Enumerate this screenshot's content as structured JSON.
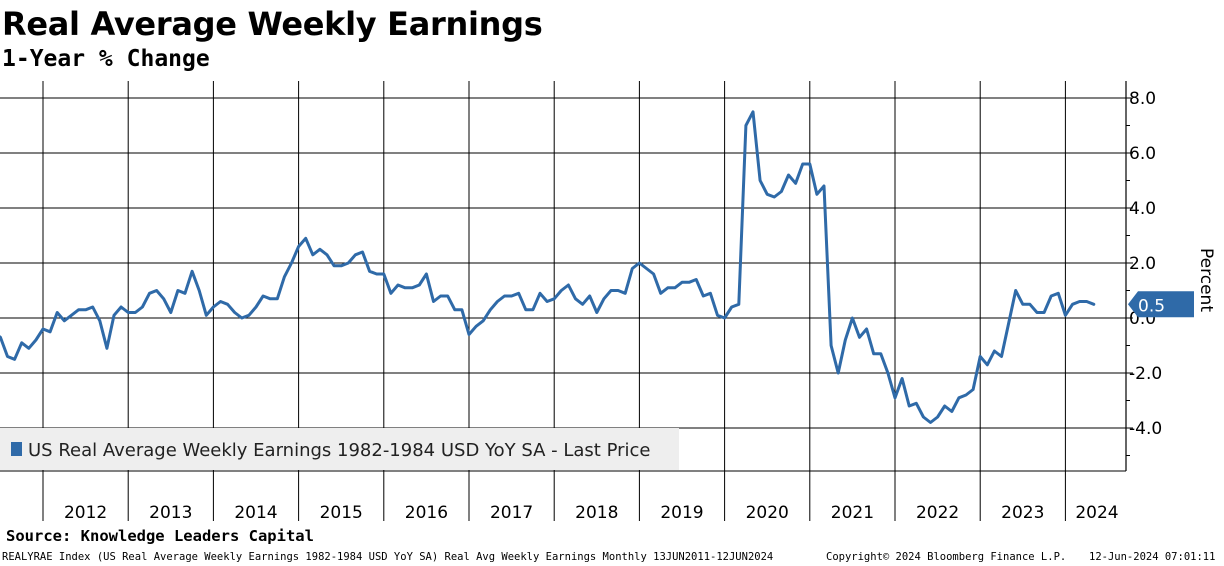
{
  "title": "Real Average Weekly Earnings",
  "subtitle": "1-Year % Change",
  "source": "Source: Knowledge Leaders Capital",
  "footer": {
    "description": "REALYRAE Index (US Real Average Weekly Earnings 1982-1984 USD YoY SA) Real Avg Weekly Earnings  Monthly 13JUN2011-12JUN2024",
    "copyright": "Copyright© 2024 Bloomberg Finance L.P.",
    "timestamp": "12-Jun-2024 07:01:11"
  },
  "colors": {
    "series": "#2f6aa8",
    "grid": "#000000",
    "legend_bg": "#eeeeee",
    "badge": "#2f6aa8"
  },
  "chart_data": {
    "type": "line",
    "title": "Real Average Weekly Earnings",
    "subtitle": "1-Year % Change",
    "ylabel": "Percent",
    "xlabel": "",
    "ylim": [
      -5.6,
      8.6
    ],
    "y_ticks": [
      8.0,
      6.0,
      4.0,
      2.0,
      0.0,
      -2.0,
      -4.0
    ],
    "y_tick_labels": [
      "8.0",
      "6.0",
      "4.0",
      "2.0",
      "0.0",
      "-2.0",
      "-4.0"
    ],
    "x_labels": [
      "2012",
      "2013",
      "2014",
      "2015",
      "2016",
      "2017",
      "2018",
      "2019",
      "2020",
      "2021",
      "2022",
      "2023",
      "2024"
    ],
    "grid": true,
    "legend_position": "bottom-left",
    "last_price_label": "0.5",
    "series": [
      {
        "name": "US Real Average Weekly Earnings 1982-1984 USD YoY SA - Last Price",
        "start": "2011-06",
        "frequency": "monthly",
        "values": [
          -0.5,
          -0.7,
          -1.4,
          -1.5,
          -0.9,
          -1.1,
          -0.8,
          -0.4,
          -0.5,
          0.2,
          -0.1,
          0.1,
          0.3,
          0.3,
          0.4,
          -0.1,
          -1.1,
          0.1,
          0.4,
          0.2,
          0.2,
          0.4,
          0.9,
          1.0,
          0.7,
          0.2,
          1.0,
          0.9,
          1.7,
          1.0,
          0.1,
          0.4,
          0.6,
          0.5,
          0.2,
          0.0,
          0.1,
          0.4,
          0.8,
          0.7,
          0.7,
          1.5,
          2.0,
          2.6,
          2.9,
          2.3,
          2.5,
          2.3,
          1.9,
          1.9,
          2.0,
          2.3,
          2.4,
          1.7,
          1.6,
          1.6,
          0.9,
          1.2,
          1.1,
          1.1,
          1.2,
          1.6,
          0.6,
          0.8,
          0.8,
          0.3,
          0.3,
          -0.6,
          -0.3,
          -0.1,
          0.3,
          0.6,
          0.8,
          0.8,
          0.9,
          0.3,
          0.3,
          0.9,
          0.6,
          0.7,
          1.0,
          1.2,
          0.7,
          0.5,
          0.8,
          0.2,
          0.7,
          1.0,
          1.0,
          0.9,
          1.8,
          2.0,
          1.8,
          1.6,
          0.9,
          1.1,
          1.1,
          1.3,
          1.3,
          1.4,
          0.8,
          0.9,
          0.1,
          0.0,
          0.4,
          0.5,
          7.0,
          7.5,
          5.0,
          4.5,
          4.4,
          4.6,
          5.2,
          4.9,
          5.6,
          5.6,
          4.5,
          4.8,
          -1.0,
          -2.0,
          -0.8,
          0.0,
          -0.7,
          -0.4,
          -1.3,
          -1.3,
          -2.0,
          -2.9,
          -2.2,
          -3.2,
          -3.1,
          -3.6,
          -3.8,
          -3.6,
          -3.2,
          -3.4,
          -2.9,
          -2.8,
          -2.6,
          -1.4,
          -1.7,
          -1.2,
          -1.4,
          -0.2,
          1.0,
          0.5,
          0.5,
          0.2,
          0.2,
          0.8,
          0.9,
          0.1,
          0.5,
          0.6,
          0.6,
          0.5
        ]
      }
    ]
  }
}
